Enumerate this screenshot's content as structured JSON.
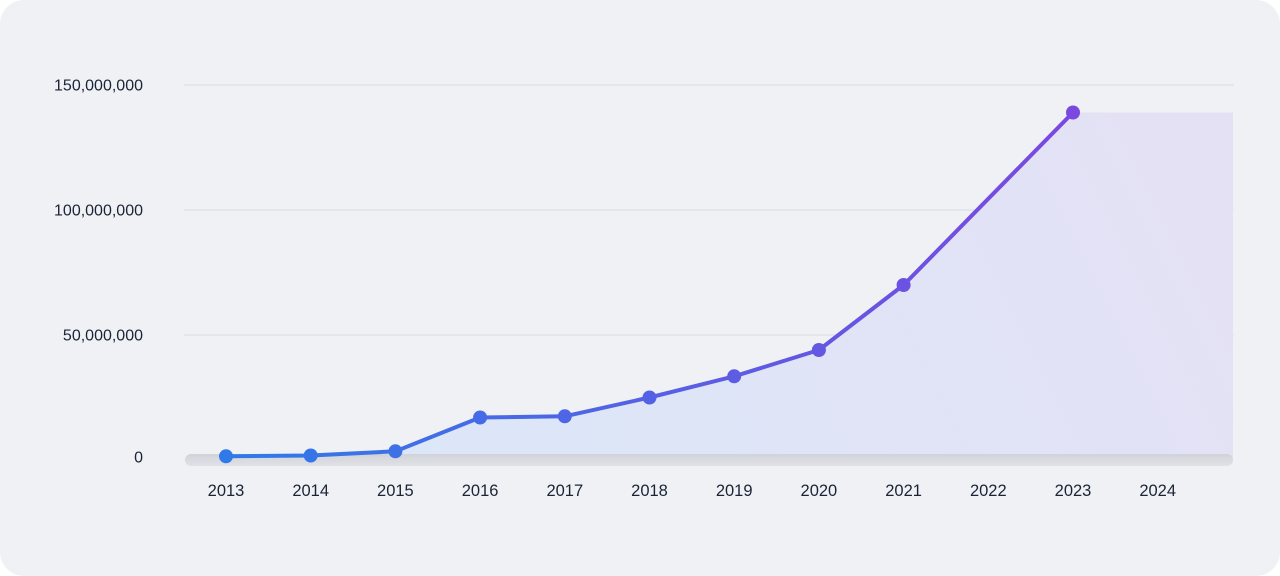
{
  "page": {
    "background_color": "#eff1f4",
    "outside_color": "#ffffff"
  },
  "chart_data": {
    "type": "area",
    "title": "",
    "xlabel": "",
    "ylabel": "",
    "legend": "none",
    "grid": "horizontal",
    "categories": [
      "2013",
      "2014",
      "2015",
      "2016",
      "2017",
      "2018",
      "2019",
      "2020",
      "2021",
      "2022",
      "2023",
      "2024"
    ],
    "points": [
      {
        "year": "2013",
        "value": 1500000
      },
      {
        "year": "2014",
        "value": 1800000
      },
      {
        "year": "2015",
        "value": 3500000
      },
      {
        "year": "2016",
        "value": 17000000
      },
      {
        "year": "2017",
        "value": 17500000
      },
      {
        "year": "2018",
        "value": 25000000
      },
      {
        "year": "2019",
        "value": 33500000
      },
      {
        "year": "2020",
        "value": 44000000
      },
      {
        "year": "2021",
        "value": 70000000
      },
      {
        "year": "2023",
        "value": 139000000
      }
    ],
    "area_extends_flat_to_right_edge": true,
    "ylim": [
      0,
      150000000
    ],
    "y_ticks": [
      {
        "value": 0,
        "label": "0"
      },
      {
        "value": 50000000,
        "label": "50,000,000"
      },
      {
        "value": 100000000,
        "label": "100,000,000"
      },
      {
        "value": 150000000,
        "label": "150,000,000"
      }
    ],
    "colors": {
      "line_gradient_start": "#2f7ae8",
      "line_gradient_end": "#7b48e0",
      "area_gradient_start": "#dbe7f8",
      "area_gradient_end": "#e4e1f5",
      "baseline_band_top": "#cfd2d7",
      "baseline_band_mid": "#d6d8dd",
      "baseline_band_bottom": "#dfe1e5",
      "gridline": "#e4e6ed",
      "tick_label": "#1b2437"
    }
  }
}
